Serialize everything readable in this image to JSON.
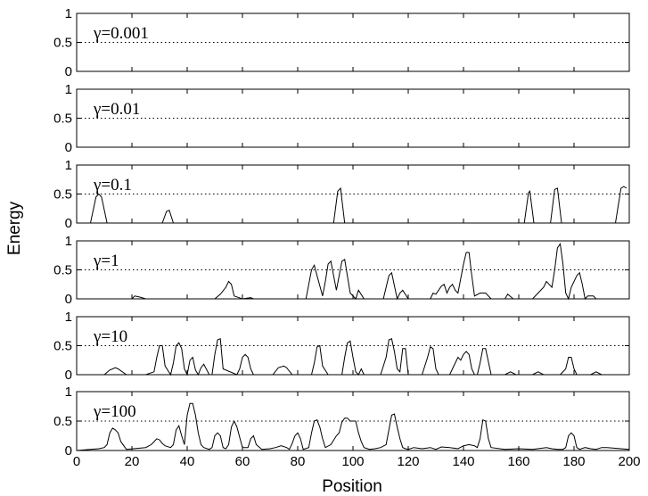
{
  "chart_data": {
    "type": "line",
    "xlabel": "Position",
    "ylabel": "Energy",
    "xlim": [
      0,
      200
    ],
    "xticks": [
      "0",
      "20",
      "40",
      "60",
      "80",
      "100",
      "120",
      "140",
      "160",
      "180",
      "200"
    ],
    "yticks": [
      "0",
      "0.5",
      "1"
    ],
    "ylim": [
      0,
      1
    ],
    "reference_line": 0.5,
    "grid": false,
    "panels": [
      {
        "label": "γ=0.001",
        "x": [
          0,
          200
        ],
        "values": [
          0,
          0
        ]
      },
      {
        "label": "γ=0.01",
        "x": [
          0,
          200
        ],
        "values": [
          0,
          0
        ]
      },
      {
        "label": "γ=0.1",
        "x": [
          0,
          5,
          7,
          8,
          9,
          11,
          31,
          32.5,
          33.5,
          35,
          93,
          94.5,
          95.5,
          97,
          162,
          163.5,
          164,
          165.5,
          171.5,
          173,
          174,
          175.5,
          195,
          197,
          198,
          199
        ],
        "values": [
          0,
          0,
          0.45,
          0.5,
          0.45,
          0,
          0,
          0.2,
          0.22,
          0,
          0,
          0.55,
          0.6,
          0,
          0,
          0.52,
          0.55,
          0,
          0,
          0.58,
          0.6,
          0,
          0,
          0.6,
          0.63,
          0.6
        ]
      },
      {
        "label": "γ=1",
        "x": [
          0,
          20,
          21,
          23,
          25,
          50,
          52,
          54,
          55,
          56,
          57,
          60,
          63,
          64,
          83,
          85,
          86,
          87,
          89,
          90,
          91,
          92,
          94,
          95,
          96,
          97,
          99,
          101,
          102,
          104,
          111,
          112,
          113,
          114,
          116,
          117,
          118,
          120,
          128,
          129,
          130,
          131,
          132,
          133,
          134,
          135,
          136,
          137,
          138,
          139,
          140,
          141,
          142,
          143,
          144,
          146,
          148,
          150,
          155,
          156,
          158,
          165,
          167,
          169,
          170,
          171,
          172,
          173,
          174,
          175,
          176,
          177,
          178,
          179,
          181,
          182,
          183,
          184,
          185,
          187,
          188,
          189,
          191,
          200
        ],
        "values": [
          0,
          0,
          0.05,
          0.03,
          0,
          0,
          0.08,
          0.2,
          0.3,
          0.25,
          0.05,
          0,
          0.02,
          0,
          0,
          0.5,
          0.58,
          0.4,
          0.05,
          0.3,
          0.6,
          0.65,
          0.15,
          0.4,
          0.65,
          0.68,
          0.1,
          0,
          0.15,
          0,
          0,
          0.2,
          0.4,
          0.45,
          0,
          0.1,
          0.15,
          0,
          0,
          0.1,
          0.08,
          0.15,
          0.22,
          0.25,
          0.1,
          0.2,
          0.25,
          0.15,
          0.1,
          0.35,
          0.6,
          0.8,
          0.8,
          0.4,
          0.05,
          0.1,
          0.1,
          0,
          0,
          0.08,
          0,
          0,
          0.1,
          0.2,
          0.3,
          0.25,
          0.2,
          0.5,
          0.88,
          0.95,
          0.6,
          0.1,
          0,
          0.2,
          0.4,
          0.45,
          0.25,
          0,
          0.05,
          0.05,
          0,
          0,
          0,
          0
        ]
      },
      {
        "label": "γ=10",
        "x": [
          0,
          10,
          12,
          14,
          15,
          18,
          25,
          28,
          29,
          30,
          31,
          32,
          34,
          35,
          36,
          37,
          38,
          39,
          40,
          41,
          42,
          43,
          44,
          45,
          46,
          48,
          49,
          50,
          51,
          52,
          53,
          58,
          59,
          60,
          61,
          62,
          63,
          64,
          71,
          73,
          75,
          76,
          78,
          85,
          86,
          87,
          88,
          89,
          91,
          96,
          97,
          98,
          99,
          100,
          101,
          102,
          103,
          104,
          110,
          112,
          113,
          114,
          115,
          116,
          117,
          118,
          119,
          120,
          125,
          127,
          128,
          129,
          130,
          131,
          135,
          137,
          138,
          139,
          140,
          141,
          142,
          143,
          144,
          145,
          146,
          147,
          148,
          150,
          155,
          157,
          159,
          165,
          167,
          169,
          175,
          177,
          178,
          179,
          180,
          181,
          186,
          188,
          190,
          200
        ],
        "values": [
          0,
          0,
          0.08,
          0.12,
          0.1,
          0,
          0,
          0.05,
          0.3,
          0.5,
          0.5,
          0.15,
          0,
          0.2,
          0.5,
          0.55,
          0.45,
          0.1,
          0,
          0.25,
          0.3,
          0.08,
          0,
          0.12,
          0.18,
          0,
          0,
          0.35,
          0.6,
          0.62,
          0.1,
          0,
          0.1,
          0.3,
          0.35,
          0.3,
          0.1,
          0,
          0,
          0.12,
          0.15,
          0.12,
          0,
          0,
          0.2,
          0.48,
          0.5,
          0.15,
          0,
          0,
          0.3,
          0.55,
          0.58,
          0.3,
          0.05,
          0,
          0.1,
          0,
          0,
          0.3,
          0.6,
          0.62,
          0.4,
          0.1,
          0.05,
          0.45,
          0.45,
          0,
          0,
          0.3,
          0.48,
          0.45,
          0.1,
          0,
          0,
          0.2,
          0.3,
          0.25,
          0.35,
          0.4,
          0.35,
          0.1,
          0,
          0,
          0.2,
          0.45,
          0.45,
          0,
          0,
          0.05,
          0,
          0,
          0.05,
          0,
          0,
          0.1,
          0.3,
          0.3,
          0.1,
          0,
          0,
          0.05,
          0,
          0
        ]
      },
      {
        "label": "γ=100",
        "x": [
          0,
          5,
          8,
          10,
          11,
          12,
          13,
          14,
          15,
          16,
          18,
          25,
          27,
          28,
          29,
          30,
          31,
          32,
          34,
          35,
          36,
          37,
          38,
          39,
          40,
          41,
          42,
          43,
          44,
          45,
          46,
          48,
          49,
          50,
          51,
          52,
          53,
          54,
          55,
          56,
          57,
          58,
          60,
          62,
          63,
          64,
          65,
          67,
          70,
          72,
          74,
          76,
          77,
          78,
          79,
          80,
          81,
          82,
          84,
          85,
          86,
          87,
          88,
          89,
          90,
          92,
          94,
          95,
          96,
          97,
          98,
          99,
          100,
          101,
          102,
          103,
          104,
          106,
          108,
          110,
          112,
          113,
          114,
          115,
          116,
          117,
          118,
          119,
          120,
          122,
          125,
          128,
          130,
          132,
          135,
          138,
          140,
          142,
          144,
          145,
          146,
          147,
          148,
          149,
          150,
          155,
          160,
          165,
          170,
          172,
          174,
          176,
          177,
          178,
          179,
          180,
          181,
          182,
          184,
          186,
          188,
          190,
          192,
          200
        ],
        "values": [
          0,
          0.02,
          0.03,
          0.05,
          0.1,
          0.3,
          0.38,
          0.35,
          0.3,
          0.15,
          0.02,
          0.05,
          0.1,
          0.15,
          0.2,
          0.18,
          0.12,
          0.08,
          0.05,
          0.1,
          0.35,
          0.42,
          0.25,
          0.1,
          0.6,
          0.8,
          0.8,
          0.6,
          0.3,
          0.1,
          0.05,
          0.02,
          0.05,
          0.25,
          0.3,
          0.25,
          0.05,
          0.03,
          0.1,
          0.4,
          0.5,
          0.4,
          0.05,
          0.05,
          0.2,
          0.25,
          0.1,
          0.02,
          0.03,
          0.05,
          0.08,
          0.05,
          0.02,
          0.12,
          0.25,
          0.3,
          0.2,
          0.02,
          0.05,
          0.3,
          0.5,
          0.52,
          0.4,
          0.2,
          0.05,
          0.1,
          0.25,
          0.3,
          0.48,
          0.55,
          0.55,
          0.5,
          0.5,
          0.5,
          0.3,
          0.15,
          0.05,
          0.02,
          0.03,
          0.05,
          0.1,
          0.35,
          0.6,
          0.62,
          0.4,
          0.2,
          0.05,
          0.03,
          0.02,
          0.05,
          0.03,
          0.05,
          0.02,
          0.06,
          0.05,
          0.03,
          0.08,
          0.1,
          0.08,
          0.05,
          0.2,
          0.52,
          0.5,
          0.2,
          0.05,
          0.02,
          0.03,
          0.02,
          0.05,
          0.03,
          0.02,
          0.02,
          0.05,
          0.25,
          0.3,
          0.25,
          0.05,
          0.02,
          0.05,
          0.03,
          0.02,
          0.05,
          0.05,
          0.02
        ]
      }
    ]
  }
}
